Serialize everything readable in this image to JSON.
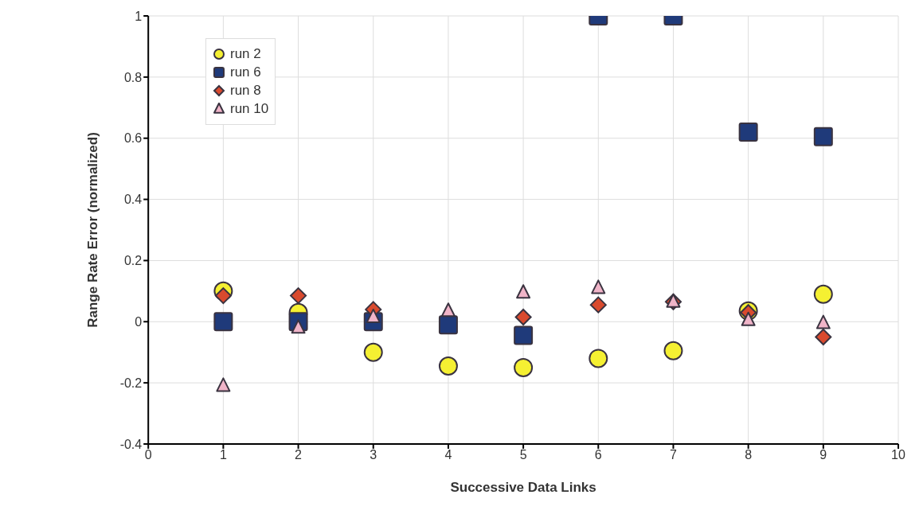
{
  "chart_data": {
    "type": "scatter",
    "xlabel": "Successive Data Links",
    "ylabel": "Range Rate Error (normalized)",
    "x": [
      1,
      2,
      3,
      4,
      5,
      6,
      7,
      8,
      9
    ],
    "series": [
      {
        "name": "run 2",
        "color": "#f5f032",
        "marker": "circle",
        "values": [
          0.1,
          0.03,
          -0.1,
          -0.145,
          -0.15,
          -0.12,
          -0.095,
          0.035,
          0.09
        ]
      },
      {
        "name": "run 6",
        "color": "#1f3a7a",
        "marker": "square",
        "values": [
          0,
          0,
          0,
          -0.01,
          -0.045,
          1,
          1,
          0.62,
          0.605
        ]
      },
      {
        "name": "run 8",
        "color": "#d94a2e",
        "marker": "diamond",
        "values": [
          0.085,
          0.085,
          0.04,
          null,
          0.015,
          0.055,
          0.065,
          0.03,
          -0.05
        ]
      },
      {
        "name": "run 10",
        "color": "#f0b4c8",
        "marker": "triangle",
        "values": [
          -0.21,
          -0.02,
          0.015,
          0.035,
          0.095,
          0.11,
          0.065,
          0.005,
          -0.005
        ]
      }
    ],
    "xlim": [
      0,
      10
    ],
    "xticks": [
      0,
      1,
      2,
      3,
      4,
      5,
      6,
      7,
      8,
      9,
      10
    ],
    "ylim": [
      -0.4,
      1
    ],
    "yticks": [
      -0.4,
      -0.2,
      0,
      0.2,
      0.4,
      0.6,
      0.8,
      1
    ],
    "grid": true,
    "legend": "top left"
  }
}
